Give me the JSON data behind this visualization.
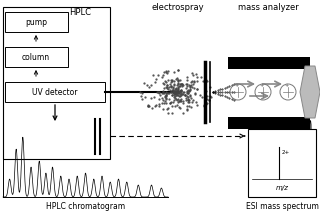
{
  "bg_color": "white",
  "electrospray_label": "electrospray",
  "mass_analyzer_label": "mass analyzer",
  "hplc_label": "HPLC",
  "hplc_chromatogram_label": "HPLC chromatogram",
  "esi_ms_label": "ESI mass spectrum",
  "mz_label": "m/z",
  "charge_label": "2+",
  "pump_label": "pump",
  "column_label": "column",
  "uvd_label": "UV detector"
}
